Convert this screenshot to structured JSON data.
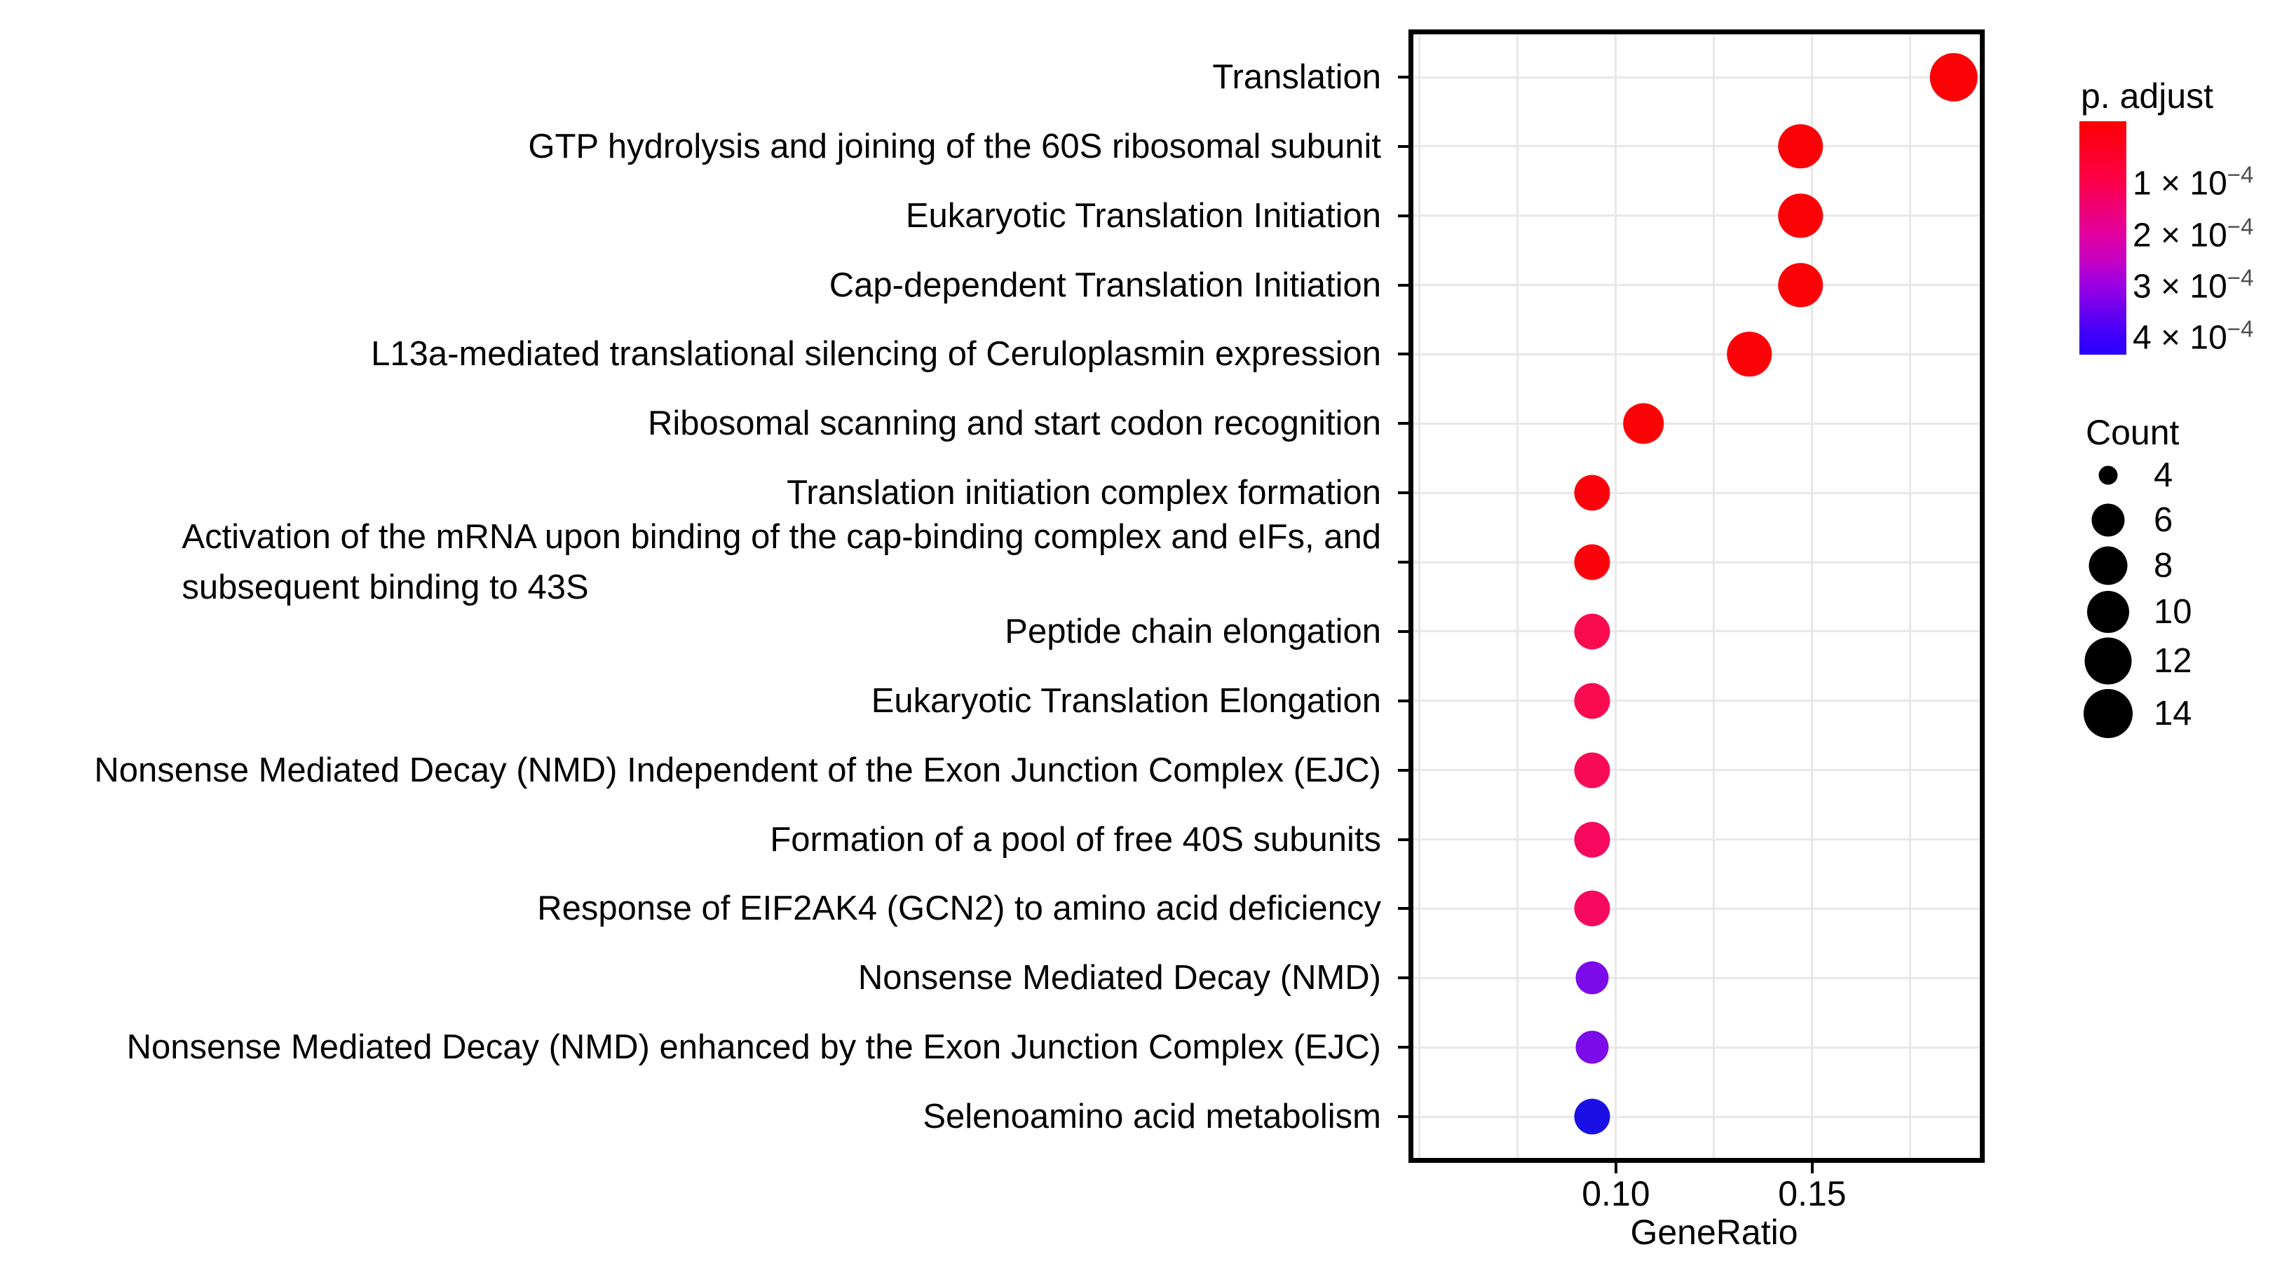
{
  "chart_data": {
    "type": "scatter",
    "title": "",
    "xlabel": "GeneRatio",
    "ylabel": "",
    "x_domain": [
      0.0477,
      0.1934
    ],
    "x_major_ticks": [
      0.1,
      0.15
    ],
    "x_tick_labels": [
      "0.10",
      "0.15"
    ],
    "x_gridlines": [
      0.05,
      0.075,
      0.1,
      0.125,
      0.15,
      0.175
    ],
    "grid_color": "#e8e8e8",
    "rows": [
      {
        "label": "Translation",
        "gene_ratio": 0.186,
        "count": 13,
        "p_adjust": 1e-05,
        "color": "#FB0207"
      },
      {
        "label": "GTP hydrolysis and joining of the 60S ribosomal subunit",
        "gene_ratio": 0.147,
        "count": 11,
        "p_adjust": 1e-05,
        "color": "#FB0207"
      },
      {
        "label": "Eukaryotic Translation Initiation",
        "gene_ratio": 0.147,
        "count": 11,
        "p_adjust": 1e-05,
        "color": "#FB0207"
      },
      {
        "label": "Cap-dependent Translation Initiation",
        "gene_ratio": 0.147,
        "count": 11,
        "p_adjust": 1e-05,
        "color": "#FB0207"
      },
      {
        "label": "L13a-mediated translational silencing of Ceruloplasmin expression",
        "gene_ratio": 0.134,
        "count": 11,
        "p_adjust": 1e-05,
        "color": "#FB0207"
      },
      {
        "label": "Ribosomal scanning and start codon recognition",
        "gene_ratio": 0.107,
        "count": 9,
        "p_adjust": 1e-05,
        "color": "#FB0207"
      },
      {
        "label": "Translation initiation complex formation",
        "gene_ratio": 0.094,
        "count": 7,
        "p_adjust": 2e-05,
        "color": "#FB030C"
      },
      {
        "label": "Activation of the mRNA upon binding of the cap-binding complex and eIFs, and\nsubsequent binding to 43S",
        "gene_ratio": 0.094,
        "count": 7,
        "p_adjust": 2e-05,
        "color": "#FB030C"
      },
      {
        "label": "Peptide chain elongation",
        "gene_ratio": 0.094,
        "count": 7,
        "p_adjust": 7e-05,
        "color": "#FA0A50"
      },
      {
        "label": "Eukaryotic Translation Elongation",
        "gene_ratio": 0.094,
        "count": 7,
        "p_adjust": 7e-05,
        "color": "#FA0A50"
      },
      {
        "label": "Nonsense Mediated Decay (NMD) Independent of the Exon Junction Complex (EJC)",
        "gene_ratio": 0.094,
        "count": 7,
        "p_adjust": 8e-05,
        "color": "#F80A56"
      },
      {
        "label": "Formation of a pool of free 40S subunits",
        "gene_ratio": 0.094,
        "count": 7,
        "p_adjust": 9e-05,
        "color": "#F5085E"
      },
      {
        "label": "Response of EIF2AK4 (GCN2) to amino acid deficiency",
        "gene_ratio": 0.094,
        "count": 7,
        "p_adjust": 9e-05,
        "color": "#F5085E"
      },
      {
        "label": "Nonsense Mediated Decay (NMD)",
        "gene_ratio": 0.094,
        "count": 6,
        "p_adjust": 0.00032,
        "color": "#7B0BE8"
      },
      {
        "label": "Nonsense Mediated Decay (NMD) enhanced by the Exon Junction Complex (EJC)",
        "gene_ratio": 0.094,
        "count": 6,
        "p_adjust": 0.00032,
        "color": "#7B0BE8"
      },
      {
        "label": "Selenoamino acid metabolism",
        "gene_ratio": 0.094,
        "count": 7,
        "p_adjust": 0.00042,
        "color": "#1A10E6"
      }
    ],
    "legend_p_adjust": {
      "title": "p. adjust",
      "gradient_stops": [
        {
          "color": "#FC0003",
          "pos": 0
        },
        {
          "color": "#FC004A",
          "pos": 0.26
        },
        {
          "color": "#E3009E",
          "pos": 0.48
        },
        {
          "color": "#C400C4",
          "pos": 0.6
        },
        {
          "color": "#9C00E2",
          "pos": 0.7
        },
        {
          "color": "#3C00FB",
          "pos": 0.92
        },
        {
          "color": "#2B00FE",
          "pos": 1
        }
      ],
      "ticks": [
        {
          "base": "1 × 10",
          "exp": "−4",
          "pos": 0.261
        },
        {
          "base": "2 × 10",
          "exp": "−4",
          "pos": 0.482
        },
        {
          "base": "3 × 10",
          "exp": "−4",
          "pos": 0.703
        },
        {
          "base": "4 × 10",
          "exp": "−4",
          "pos": 0.922
        }
      ]
    },
    "legend_count": {
      "title": "Count",
      "items": [
        {
          "value": "4",
          "count": 4,
          "diameter": 27
        },
        {
          "value": "6",
          "count": 6,
          "diameter": 47
        },
        {
          "value": "8",
          "count": 8,
          "diameter": 55
        },
        {
          "value": "10",
          "count": 10,
          "diameter": 60
        },
        {
          "value": "12",
          "count": 12,
          "diameter": 67
        },
        {
          "value": "14",
          "count": 14,
          "diameter": 70
        }
      ]
    }
  }
}
